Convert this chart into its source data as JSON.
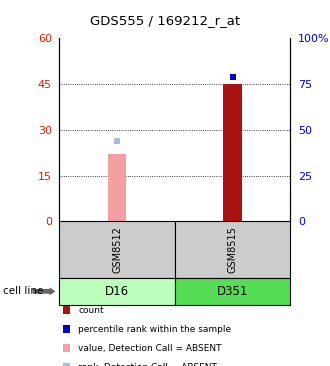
{
  "title": "GDS555 / 169212_r_at",
  "samples": [
    "GSM8512",
    "GSM8515"
  ],
  "cell_lines": [
    "D16",
    "D351"
  ],
  "bar_values": [
    22,
    45
  ],
  "bar_colors": [
    "#f4a0a0",
    "#aa1111"
  ],
  "rank_values": [
    44,
    79
  ],
  "rank_colors": [
    "#aabbd8",
    "#0000cc"
  ],
  "rank_absent": [
    true,
    false
  ],
  "ylim_left": [
    0,
    60
  ],
  "ylim_right": [
    0,
    100
  ],
  "yticks_left": [
    0,
    15,
    30,
    45,
    60
  ],
  "yticks_right": [
    0,
    25,
    50,
    75,
    100
  ],
  "ytick_labels_left": [
    "0",
    "15",
    "30",
    "45",
    "60"
  ],
  "ytick_labels_right": [
    "0",
    "25",
    "50",
    "75",
    "100%"
  ],
  "left_axis_color": "#cc2200",
  "right_axis_color": "#0000cc",
  "sample_box_color": "#cccccc",
  "cell_line_colors": [
    "#bbffbb",
    "#55dd55"
  ],
  "grid_lines": [
    15,
    30,
    45
  ],
  "bar_width": 0.08,
  "bar_positions": [
    0.25,
    0.75
  ],
  "xlim": [
    0,
    1
  ],
  "legend_items": [
    {
      "label": "count",
      "color": "#aa1111"
    },
    {
      "label": "percentile rank within the sample",
      "color": "#0000cc"
    },
    {
      "label": "value, Detection Call = ABSENT",
      "color": "#f4a0a0"
    },
    {
      "label": "rank, Detection Call = ABSENT",
      "color": "#aabbd8"
    }
  ]
}
